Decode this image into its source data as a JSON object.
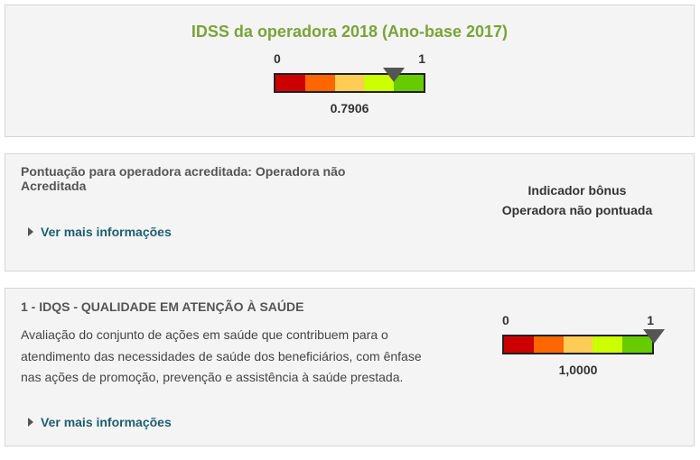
{
  "idss": {
    "title": "IDSS da operadora 2018 (Ano-base 2017)",
    "title_color": "#7aa33a",
    "gauge": {
      "min_label": "0",
      "max_label": "1",
      "value_label": "0.7906",
      "value": 0.7906,
      "segment_colors": [
        "#cc0000",
        "#ff6600",
        "#ffcc55",
        "#ccff00",
        "#66cc00"
      ]
    }
  },
  "acreditada": {
    "title": "Pontuação para operadora acreditada: Operadora não Acreditada",
    "more_link": "Ver mais informações",
    "bonus_line1": "Indicador bônus",
    "bonus_line2": "Operadora não pontuada"
  },
  "idqs": {
    "title": "1 - IDQS - QUALIDADE EM ATENÇÃO À SAÚDE",
    "description": "Avaliação do conjunto de ações em saúde que contribuem para o atendimento das necessidades de saúde dos beneficiários, com ênfase nas ações de promoção, prevenção e assistência à saúde prestada.",
    "more_link": "Ver mais informações",
    "gauge": {
      "min_label": "0",
      "max_label": "1",
      "value_label": "1,0000",
      "value": 1.0,
      "segment_colors": [
        "#cc0000",
        "#ff6600",
        "#ffcc55",
        "#ccff00",
        "#66cc00"
      ]
    }
  }
}
